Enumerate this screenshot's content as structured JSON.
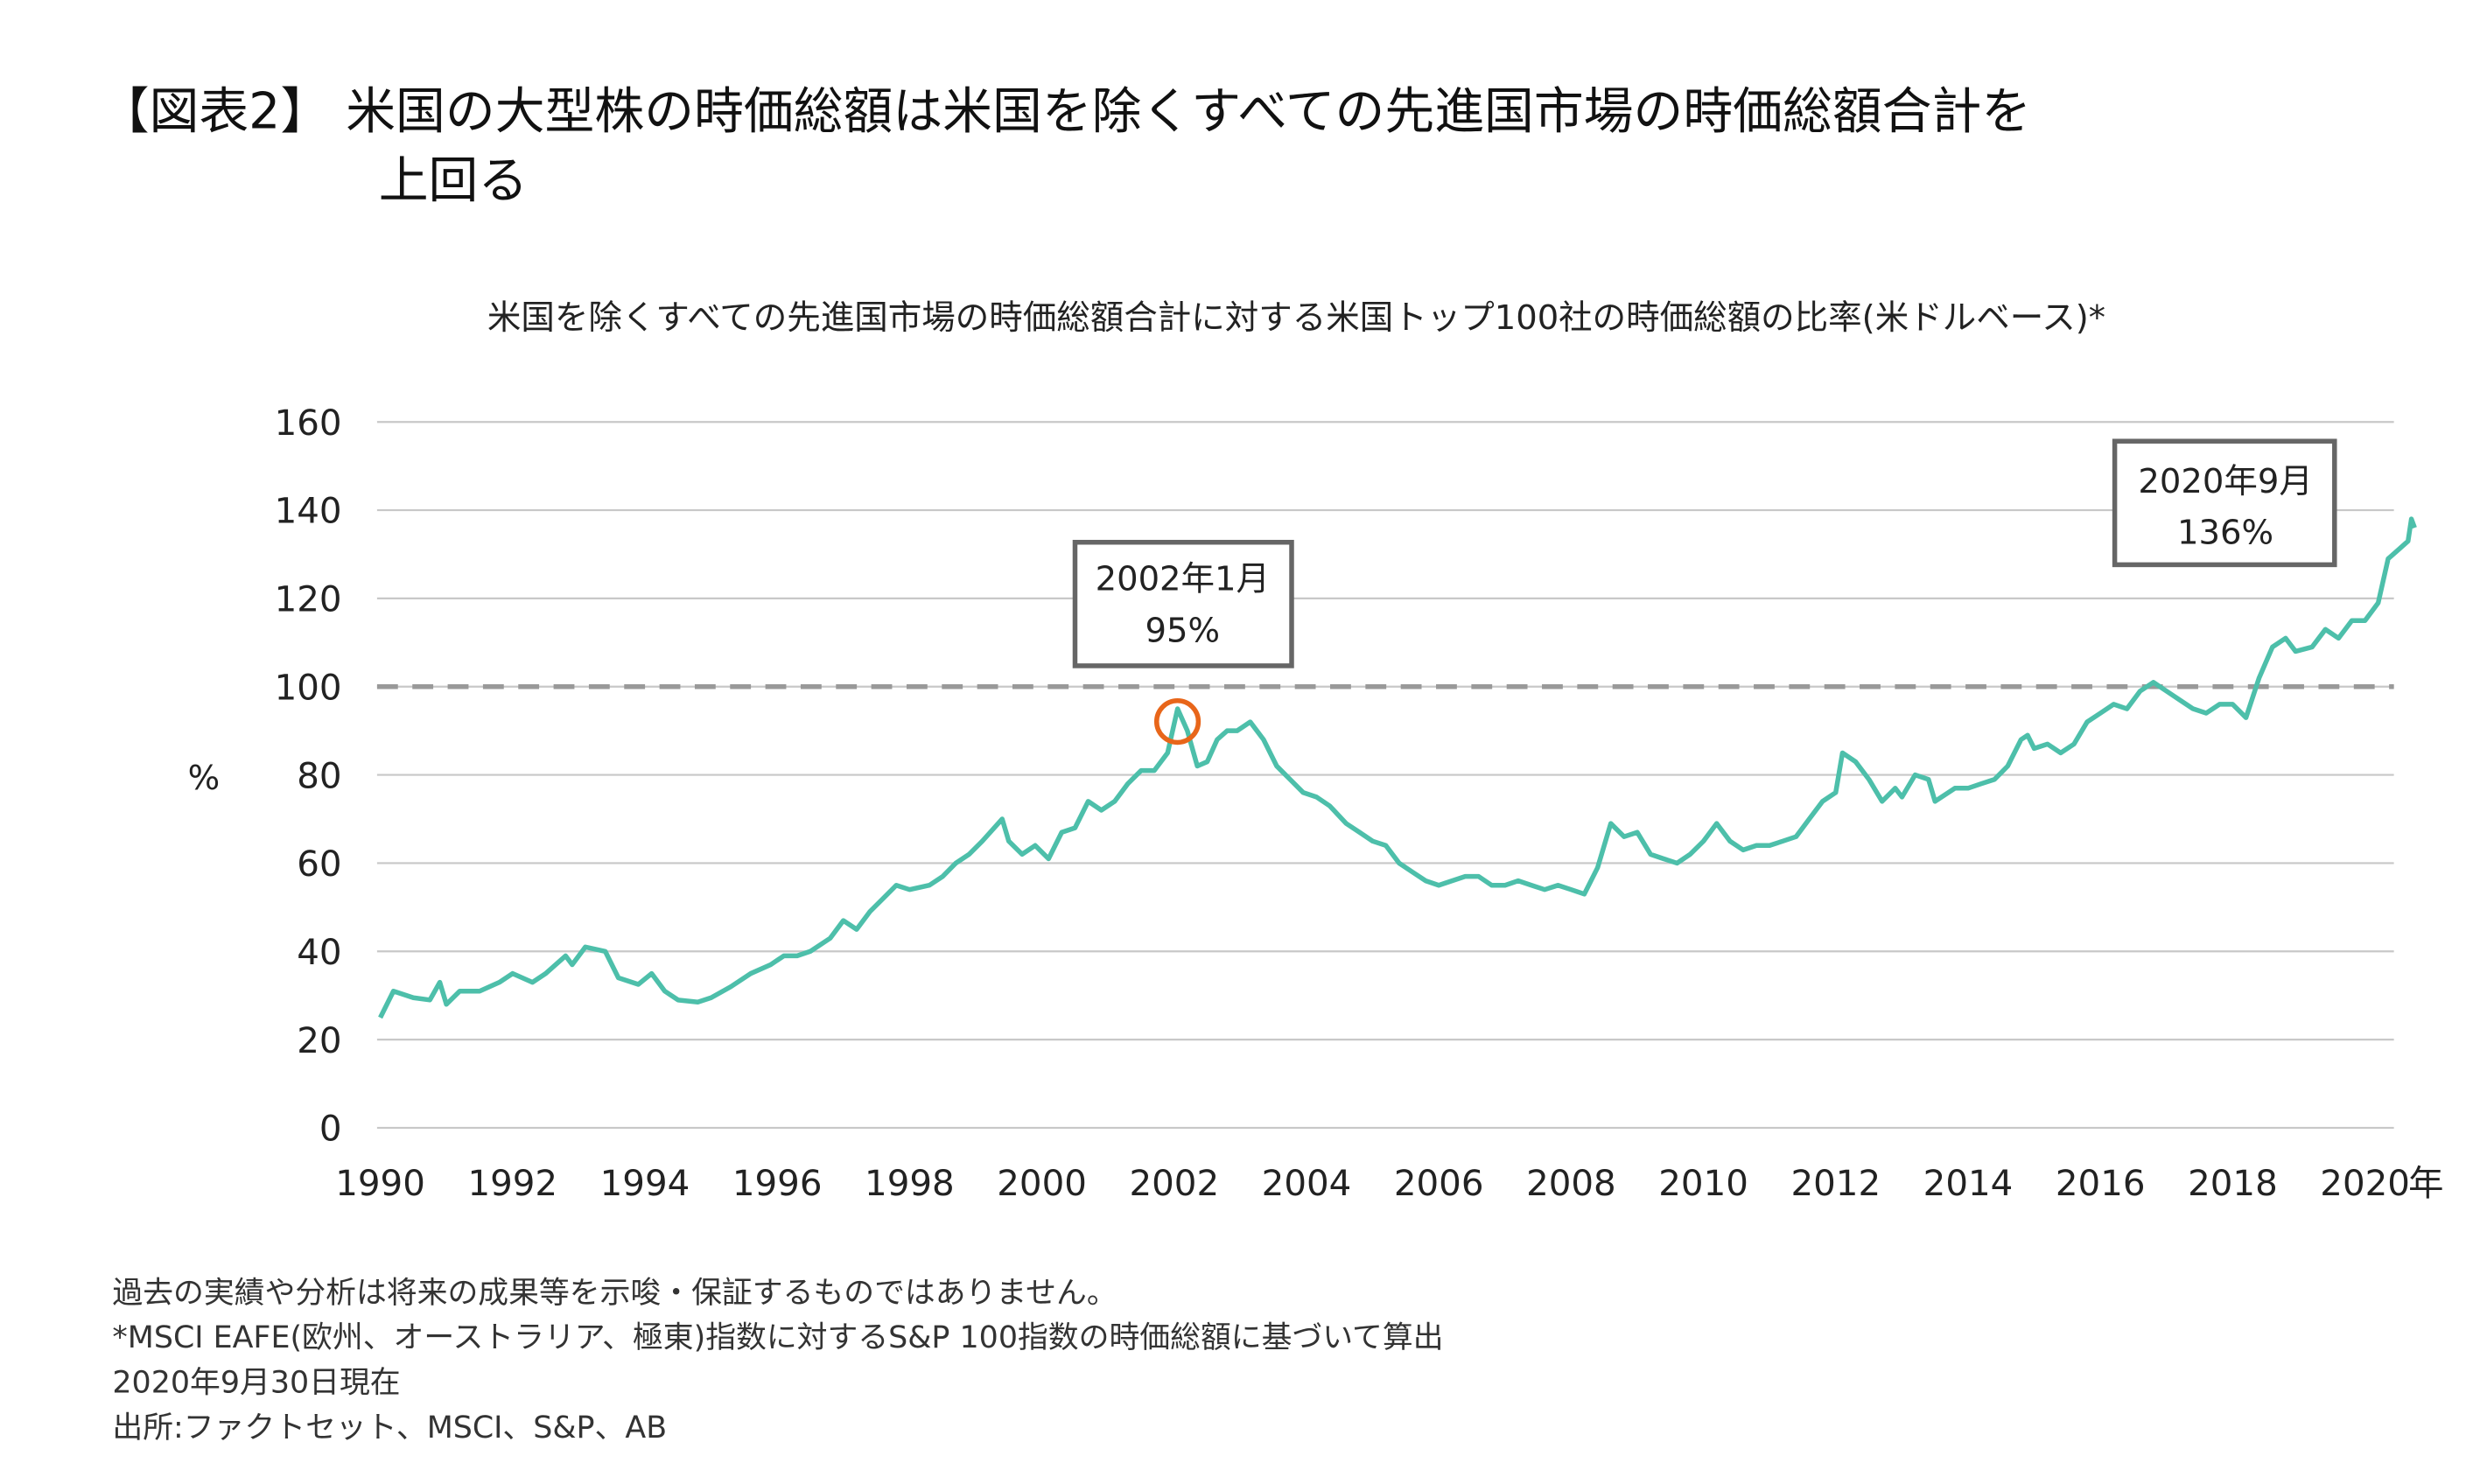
{
  "header": {
    "title_line1": "【図表2】 米国の大型株の時価総額は米国を除くすべての先進国市場の時価総額合計を",
    "title_line2": "上回る"
  },
  "chart_data": {
    "type": "line",
    "title": "米国を除くすべての先進国市場の時価総額合計に対する米国トップ100社の時価総額の比率(米ドルベース)*",
    "xlabel": "年",
    "ylabel": "%",
    "xlim": [
      1990,
      2020.75
    ],
    "ylim": [
      0,
      160
    ],
    "yticks": [
      "0",
      "20",
      "40",
      "60",
      "80",
      "100",
      "120",
      "140",
      "160"
    ],
    "xticks": [
      "1990",
      "1992",
      "1994",
      "1996",
      "1998",
      "2000",
      "2002",
      "2004",
      "2006",
      "2008",
      "2010",
      "2012",
      "2014",
      "2016",
      "2018",
      "2020"
    ],
    "grid": true,
    "reference_line": {
      "y": 100,
      "style": "dashed",
      "color": "#999999"
    },
    "line_color": "#4dbfaa",
    "highlight_color": "#e8661a",
    "annotations": [
      {
        "x": 2002.05,
        "y": 95,
        "label": "2002年1月",
        "value": "95%"
      },
      {
        "x": 2020.75,
        "y": 136,
        "label": "2020年9月",
        "value": "136%"
      }
    ],
    "series": [
      {
        "x": [
          1990.0,
          1990.2,
          1990.5,
          1990.75,
          1990.9,
          1991.0,
          1991.2,
          1991.5,
          1991.8,
          1992.0,
          1992.3,
          1992.5,
          1992.8,
          1992.9,
          1993.1,
          1993.4,
          1993.6,
          1993.9,
          1994.1,
          1994.3,
          1994.5,
          1994.8,
          1995.0,
          1995.3,
          1995.6,
          1995.9,
          1996.1,
          1996.3,
          1996.5,
          1996.8,
          1997.0,
          1997.2,
          1997.4,
          1997.6,
          1997.8,
          1998.0,
          1998.3,
          1998.5,
          1998.7,
          1998.9,
          1999.1,
          1999.4,
          1999.5,
          1999.7,
          1999.9,
          2000.1,
          2000.3,
          2000.5,
          2000.7,
          2000.9,
          2001.1,
          2001.3,
          2001.5,
          2001.7,
          2001.9,
          2002.05,
          2002.2,
          2002.35,
          2002.5,
          2002.65,
          2002.8,
          2002.95,
          2003.15,
          2003.35,
          2003.55,
          2003.75,
          2003.95,
          2004.15,
          2004.35,
          2004.6,
          2004.8,
          2005.0,
          2005.2,
          2005.4,
          2005.6,
          2005.8,
          2006.0,
          2006.2,
          2006.4,
          2006.6,
          2006.8,
          2007.0,
          2007.2,
          2007.4,
          2007.6,
          2007.8,
          2008.0,
          2008.2,
          2008.4,
          2008.6,
          2008.8,
          2009.0,
          2009.2,
          2009.4,
          2009.6,
          2009.8,
          2010.0,
          2010.2,
          2010.4,
          2010.6,
          2010.8,
          2011.0,
          2011.2,
          2011.4,
          2011.6,
          2011.8,
          2012.0,
          2012.1,
          2012.3,
          2012.5,
          2012.7,
          2012.9,
          2013.0,
          2013.2,
          2013.4,
          2013.5,
          2013.8,
          2014.0,
          2014.2,
          2014.4,
          2014.6,
          2014.8,
          2014.9,
          2015.0,
          2015.2,
          2015.4,
          2015.6,
          2015.8,
          2016.0,
          2016.2,
          2016.4,
          2016.6,
          2016.8,
          2017.0,
          2017.2,
          2017.4,
          2017.6,
          2017.8,
          2018.0,
          2018.2,
          2018.4,
          2018.6,
          2018.8,
          2018.95,
          2019.2,
          2019.4,
          2019.6,
          2019.8,
          2020.0,
          2020.2,
          2020.35,
          2020.5,
          2020.65,
          2020.7,
          2020.75
        ],
        "values": [
          25,
          31,
          29.5,
          29,
          33,
          28,
          31,
          31,
          33,
          35,
          33,
          35,
          39,
          37,
          41,
          40,
          34,
          32.5,
          35,
          31,
          29,
          28.5,
          29.5,
          32,
          35,
          37,
          39,
          39,
          40,
          43,
          47,
          45,
          49,
          52,
          55,
          54,
          55,
          57,
          60,
          62,
          65,
          70,
          65,
          62,
          64,
          61,
          67,
          68,
          74,
          72,
          74,
          78,
          81,
          81,
          85,
          95,
          90,
          82,
          83,
          88,
          90,
          90,
          92,
          88,
          82,
          79,
          76,
          75,
          73,
          69,
          67,
          65,
          64,
          60,
          58,
          56,
          55,
          56,
          57,
          57,
          55,
          55,
          56,
          55,
          54,
          55,
          54,
          53,
          59,
          69,
          66,
          67,
          62,
          61,
          60,
          62,
          65,
          69,
          65,
          63,
          64,
          64,
          65,
          66,
          70,
          74,
          76,
          85,
          83,
          79,
          74,
          77,
          75,
          80,
          79,
          74,
          77,
          77,
          78,
          79,
          82,
          88,
          89,
          86,
          87,
          85,
          87,
          92,
          94,
          96,
          95,
          99,
          101,
          99,
          97,
          95,
          94,
          96,
          96,
          93,
          102,
          109,
          111,
          108,
          109,
          113,
          111,
          115,
          115,
          119,
          129,
          131,
          133,
          138,
          136
        ]
      }
    ]
  },
  "footnotes": [
    "過去の実績や分析は将来の成果等を示唆・保証するものではありません。",
    "*MSCI EAFE(欧州、オーストラリア、極東)指数に対するS&P 100指数の時価総額に基づいて算出",
    "2020年9月30日現在",
    "出所:ファクトセット、MSCI、S&P、AB"
  ]
}
